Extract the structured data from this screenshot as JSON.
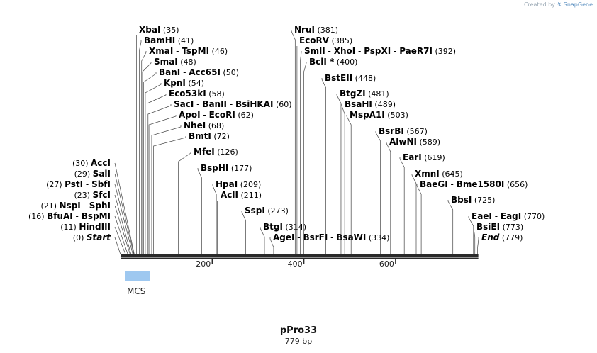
{
  "credit": {
    "prefix": "Created by",
    "brand": "SnapGene"
  },
  "plasmid": {
    "name": "pPro33",
    "length_label": "779 bp",
    "length": 779
  },
  "features": [
    {
      "label": "MCS",
      "start": 11,
      "end": 68,
      "color": "#9ec8f0"
    }
  ],
  "axis": {
    "ticks": [
      {
        "pos": 200,
        "label": "200"
      },
      {
        "pos": 400,
        "label": "400"
      },
      {
        "pos": 600,
        "label": "600"
      }
    ]
  },
  "sites": [
    {
      "names": [
        "Start"
      ],
      "pos": "(0)",
      "bp": 0,
      "side": "left",
      "italic": true
    },
    {
      "names": [
        "HindIII"
      ],
      "pos": "(11)",
      "bp": 11,
      "side": "left"
    },
    {
      "names": [
        "BfuAI",
        "BspMI"
      ],
      "pos": "(16)",
      "bp": 16,
      "side": "left"
    },
    {
      "names": [
        "NspI",
        "SphI"
      ],
      "pos": "(21)",
      "bp": 21,
      "side": "left"
    },
    {
      "names": [
        "SfcI"
      ],
      "pos": "(23)",
      "bp": 23,
      "side": "left"
    },
    {
      "names": [
        "PstI",
        "SbfI"
      ],
      "pos": "(27)",
      "bp": 27,
      "side": "left"
    },
    {
      "names": [
        "SalI"
      ],
      "pos": "(29)",
      "bp": 29,
      "side": "left"
    },
    {
      "names": [
        "AccI"
      ],
      "pos": "(30)",
      "bp": 30,
      "side": "left"
    },
    {
      "names": [
        "XbaI"
      ],
      "pos": "(35)",
      "bp": 35,
      "side": "right"
    },
    {
      "names": [
        "BamHI"
      ],
      "pos": "(41)",
      "bp": 41,
      "side": "right"
    },
    {
      "names": [
        "XmaI",
        "TspMI"
      ],
      "pos": "(46)",
      "bp": 46,
      "side": "right"
    },
    {
      "names": [
        "SmaI"
      ],
      "pos": "(48)",
      "bp": 48,
      "side": "right"
    },
    {
      "names": [
        "BanI",
        "Acc65I"
      ],
      "pos": "(50)",
      "bp": 50,
      "side": "right"
    },
    {
      "names": [
        "KpnI"
      ],
      "pos": "(54)",
      "bp": 54,
      "side": "right"
    },
    {
      "names": [
        "Eco53kI"
      ],
      "pos": "(58)",
      "bp": 58,
      "side": "right"
    },
    {
      "names": [
        "SacI",
        "BanII",
        "BsiHKAI"
      ],
      "pos": "(60)",
      "bp": 60,
      "side": "right"
    },
    {
      "names": [
        "ApoI",
        "EcoRI"
      ],
      "pos": "(62)",
      "bp": 62,
      "side": "right"
    },
    {
      "names": [
        "NheI"
      ],
      "pos": "(68)",
      "bp": 68,
      "side": "right"
    },
    {
      "names": [
        "BmtI"
      ],
      "pos": "(72)",
      "bp": 72,
      "side": "right"
    },
    {
      "names": [
        "MfeI"
      ],
      "pos": "(126)",
      "bp": 126,
      "side": "right"
    },
    {
      "names": [
        "BspHI"
      ],
      "pos": "(177)",
      "bp": 177,
      "side": "right"
    },
    {
      "names": [
        "HpaI"
      ],
      "pos": "(209)",
      "bp": 209,
      "side": "right"
    },
    {
      "names": [
        "AclI"
      ],
      "pos": "(211)",
      "bp": 211,
      "side": "right"
    },
    {
      "names": [
        "SspI"
      ],
      "pos": "(273)",
      "bp": 273,
      "side": "right"
    },
    {
      "names": [
        "BtgI"
      ],
      "pos": "(314)",
      "bp": 314,
      "side": "right"
    },
    {
      "names": [
        "AgeI",
        "BsrFI",
        "BsaWI"
      ],
      "pos": "(334)",
      "bp": 334,
      "side": "right"
    },
    {
      "names": [
        "NruI"
      ],
      "pos": "(381)",
      "bp": 381,
      "side": "right"
    },
    {
      "names": [
        "EcoRV"
      ],
      "pos": "(385)",
      "bp": 385,
      "side": "right"
    },
    {
      "names": [
        "SmlI",
        "XhoI",
        "PspXI",
        "PaeR7I"
      ],
      "pos": "(392)",
      "bp": 392,
      "side": "right"
    },
    {
      "names": [
        "BclI *"
      ],
      "pos": "(400)",
      "bp": 400,
      "side": "right"
    },
    {
      "names": [
        "BstEII"
      ],
      "pos": "(448)",
      "bp": 448,
      "side": "right"
    },
    {
      "names": [
        "BtgZI"
      ],
      "pos": "(481)",
      "bp": 481,
      "side": "right"
    },
    {
      "names": [
        "BsaHI"
      ],
      "pos": "(489)",
      "bp": 489,
      "side": "right"
    },
    {
      "names": [
        "MspA1I"
      ],
      "pos": "(503)",
      "bp": 503,
      "side": "right"
    },
    {
      "names": [
        "BsrBI"
      ],
      "pos": "(567)",
      "bp": 567,
      "side": "right"
    },
    {
      "names": [
        "AlwNI"
      ],
      "pos": "(589)",
      "bp": 589,
      "side": "right"
    },
    {
      "names": [
        "EarI"
      ],
      "pos": "(619)",
      "bp": 619,
      "side": "right"
    },
    {
      "names": [
        "XmnI"
      ],
      "pos": "(645)",
      "bp": 645,
      "side": "right"
    },
    {
      "names": [
        "BaeGI",
        "Bme1580I"
      ],
      "pos": "(656)",
      "bp": 656,
      "side": "right"
    },
    {
      "names": [
        "BbsI"
      ],
      "pos": "(725)",
      "bp": 725,
      "side": "right"
    },
    {
      "names": [
        "EaeI",
        "EagI"
      ],
      "pos": "(770)",
      "bp": 770,
      "side": "right"
    },
    {
      "names": [
        "BsiEI"
      ],
      "pos": "(773)",
      "bp": 773,
      "side": "right"
    },
    {
      "names": [
        "End"
      ],
      "pos": "(779)",
      "bp": 779,
      "side": "right",
      "italic": true
    }
  ]
}
